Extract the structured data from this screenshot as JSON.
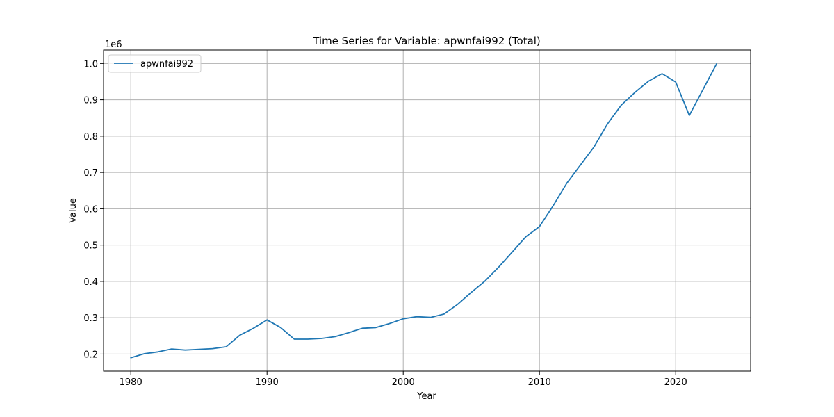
{
  "chart_data": {
    "type": "line",
    "title": "Time Series for Variable: apwnfai992 (Total)",
    "xlabel": "Year",
    "ylabel": "Value",
    "y_offset_label": "1e6",
    "xlim": [
      1978,
      2025.5
    ],
    "ylim": [
      0.153,
      1.037
    ],
    "xticks": [
      1980,
      1990,
      2000,
      2010,
      2020
    ],
    "yticks": [
      0.2,
      0.3,
      0.4,
      0.5,
      0.6,
      0.7,
      0.8,
      0.9,
      1.0
    ],
    "ytick_labels": [
      "0.2",
      "0.3",
      "0.4",
      "0.5",
      "0.6",
      "0.7",
      "0.8",
      "0.9",
      "1.0"
    ],
    "grid": true,
    "legend_position": "upper-left",
    "series": [
      {
        "name": "apwnfai992",
        "color": "#1f77b4",
        "x": [
          1980,
          1981,
          1982,
          1983,
          1984,
          1985,
          1986,
          1987,
          1988,
          1989,
          1990,
          1991,
          1992,
          1993,
          1994,
          1995,
          1996,
          1997,
          1998,
          1999,
          2000,
          2001,
          2002,
          2003,
          2004,
          2005,
          2006,
          2007,
          2008,
          2009,
          2010,
          2011,
          2012,
          2013,
          2014,
          2015,
          2016,
          2017,
          2018,
          2019,
          2020,
          2021,
          2022,
          2023
        ],
        "values": [
          0.19,
          0.201,
          0.206,
          0.214,
          0.211,
          0.213,
          0.215,
          0.22,
          0.252,
          0.271,
          0.294,
          0.273,
          0.241,
          0.241,
          0.243,
          0.248,
          0.259,
          0.271,
          0.273,
          0.284,
          0.297,
          0.303,
          0.301,
          0.31,
          0.337,
          0.37,
          0.401,
          0.439,
          0.481,
          0.523,
          0.551,
          0.608,
          0.67,
          0.72,
          0.77,
          0.834,
          0.885,
          0.92,
          0.951,
          0.972,
          0.949,
          0.857,
          0.928,
          0.999
        ]
      }
    ]
  }
}
